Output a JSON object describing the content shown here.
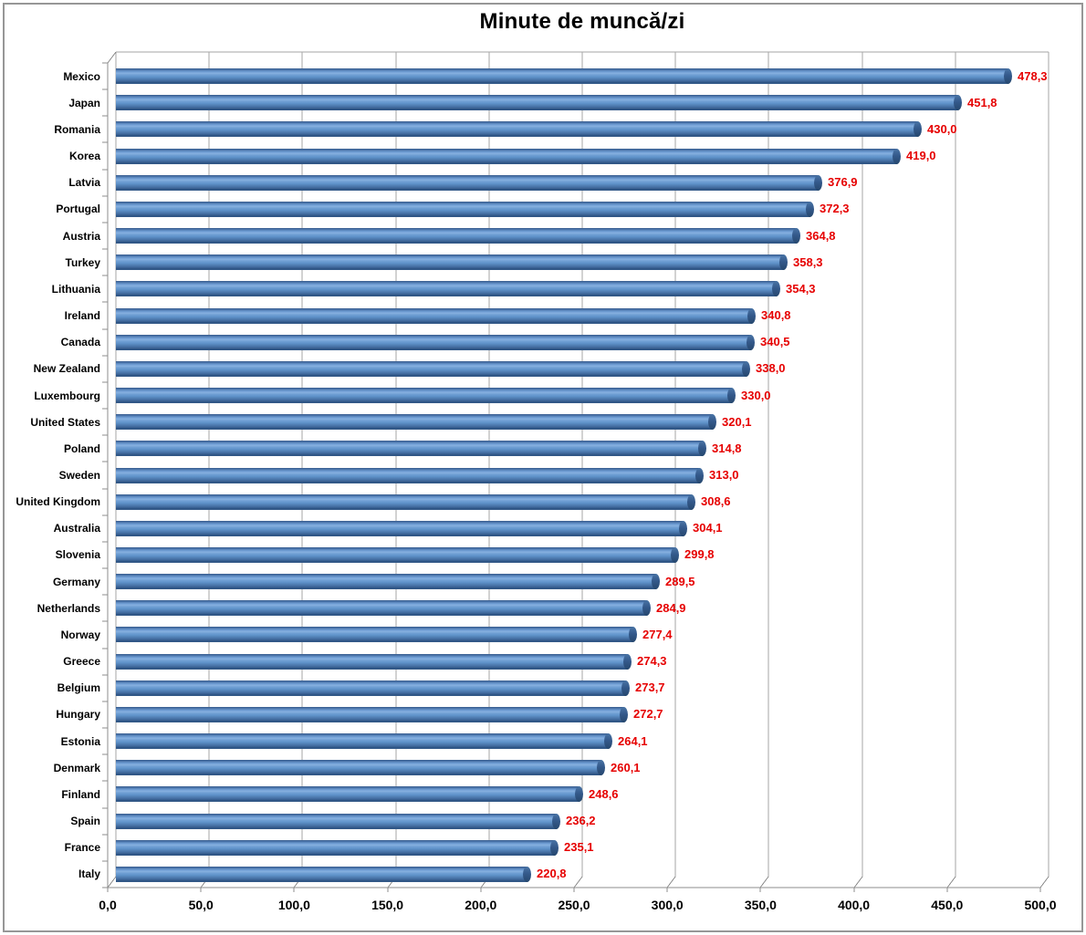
{
  "chart_data": {
    "type": "bar",
    "orientation": "horizontal",
    "style": "3d-cylinder",
    "title": "Minute de muncă/zi",
    "categories": [
      "Mexico",
      "Japan",
      "Romania",
      "Korea",
      "Latvia",
      "Portugal",
      "Austria",
      "Turkey",
      "Lithuania",
      "Ireland",
      "Canada",
      "New Zealand",
      "Luxembourg",
      "United States",
      "Poland",
      "Sweden",
      "United Kingdom",
      "Australia",
      "Slovenia",
      "Germany",
      "Netherlands",
      "Norway",
      "Greece",
      "Belgium",
      "Hungary",
      "Estonia",
      "Denmark",
      "Finland",
      "Spain",
      "France",
      "Italy"
    ],
    "values": [
      478.3,
      451.8,
      430.0,
      419.0,
      376.9,
      372.3,
      364.8,
      358.3,
      354.3,
      340.8,
      340.5,
      338.0,
      330.0,
      320.1,
      314.8,
      313.0,
      308.6,
      304.1,
      299.8,
      289.5,
      284.9,
      277.4,
      274.3,
      273.7,
      272.7,
      264.1,
      260.1,
      248.6,
      236.2,
      235.1,
      220.8
    ],
    "value_labels": [
      "478,3",
      "451,8",
      "430,0",
      "419,0",
      "376,9",
      "372,3",
      "364,8",
      "358,3",
      "354,3",
      "340,8",
      "340,5",
      "338,0",
      "330,0",
      "320,1",
      "314,8",
      "313,0",
      "308,6",
      "304,1",
      "299,8",
      "289,5",
      "284,9",
      "277,4",
      "274,3",
      "273,7",
      "272,7",
      "264,1",
      "260,1",
      "248,6",
      "236,2",
      "235,1",
      "220,8"
    ],
    "xlabel": "",
    "ylabel": "",
    "xlim": [
      0,
      500
    ],
    "x_ticks": [
      0,
      50,
      100,
      150,
      200,
      250,
      300,
      350,
      400,
      450,
      500
    ],
    "x_tick_labels": [
      "0,0",
      "50,0",
      "100,0",
      "150,0",
      "200,0",
      "250,0",
      "300,0",
      "350,0",
      "400,0",
      "450,0",
      "500,0"
    ],
    "grid": true,
    "legend": false,
    "colors": {
      "bar": "#4f81bd",
      "bar_dark": "#2c5180",
      "bar_light": "#86b0e0",
      "value_label": "#e60000",
      "gridline": "#a6a6a6",
      "axis": "#8e8e8e",
      "title": "#000000",
      "frame_border": "#979797"
    }
  }
}
